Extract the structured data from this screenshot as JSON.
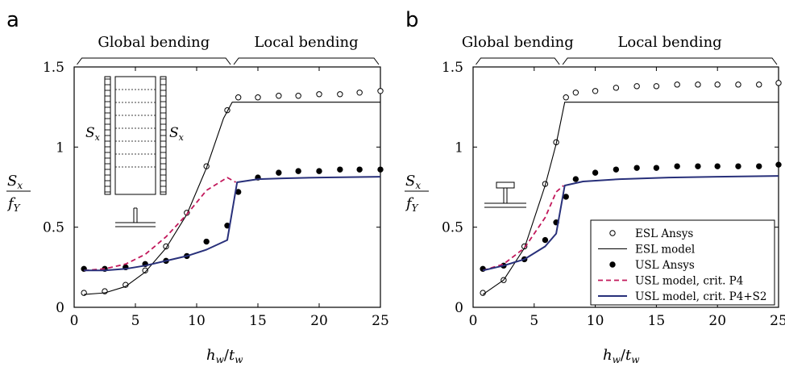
{
  "colors": {
    "esl": "#000000",
    "usl_ansys": "#000000",
    "usl_p4": "#c2185b",
    "usl_p4s2": "#28307a"
  },
  "chart_data": [
    {
      "type": "line",
      "panel_label": "a",
      "xlabel": "h_w/t_w",
      "ylabel": "S_x/f_Y",
      "xlim": [
        0,
        25
      ],
      "ylim": [
        0,
        1.5
      ],
      "xticks": [
        "0",
        "5",
        "10",
        "15",
        "20",
        "25"
      ],
      "yticks": [
        "0",
        "0.5",
        "1",
        "1.5"
      ],
      "regions": [
        {
          "label": "Global bending",
          "from": 0.1,
          "to": 12.9
        },
        {
          "label": "Local bending",
          "from": 12.9,
          "to": 25
        }
      ],
      "inset": {
        "left_label": "S_x",
        "right_label": "S_x",
        "section": "T-stiffener"
      },
      "series": [
        {
          "name": "ESL Ansys",
          "style": "open-circle",
          "x": [
            0.8,
            2.5,
            4.2,
            5.8,
            7.5,
            9.2,
            10.8,
            12.5,
            13.4,
            15.0,
            16.7,
            18.3,
            20.0,
            21.7,
            23.3,
            25.0
          ],
          "y": [
            0.09,
            0.1,
            0.14,
            0.23,
            0.38,
            0.59,
            0.88,
            1.23,
            1.31,
            1.31,
            1.32,
            1.32,
            1.33,
            1.33,
            1.34,
            1.35
          ]
        },
        {
          "name": "ESL model",
          "style": "solid-black",
          "x": [
            0.8,
            2.5,
            4.2,
            5.8,
            7.5,
            9.2,
            10.8,
            12.2,
            12.9,
            25.0
          ],
          "y": [
            0.08,
            0.09,
            0.13,
            0.22,
            0.37,
            0.58,
            0.87,
            1.18,
            1.28,
            1.28
          ]
        },
        {
          "name": "USL Ansys",
          "style": "filled-dot",
          "x": [
            0.8,
            2.5,
            4.2,
            5.8,
            7.5,
            9.2,
            10.8,
            12.5,
            13.4,
            15.0,
            16.7,
            18.3,
            20.0,
            21.7,
            23.3,
            25.0
          ],
          "y": [
            0.24,
            0.24,
            0.25,
            0.27,
            0.29,
            0.32,
            0.41,
            0.51,
            0.72,
            0.81,
            0.84,
            0.85,
            0.85,
            0.86,
            0.86,
            0.86
          ]
        },
        {
          "name": "USL model, crit. P4",
          "style": "dashed-magenta",
          "x": [
            0.8,
            2.5,
            4.2,
            5.8,
            7.5,
            9.2,
            10.8,
            12.5,
            13.2
          ],
          "y": [
            0.23,
            0.24,
            0.27,
            0.33,
            0.44,
            0.58,
            0.73,
            0.81,
            0.78
          ]
        },
        {
          "name": "USL model, crit. P4+S2",
          "style": "solid-navy",
          "x": [
            0.8,
            2.5,
            4.2,
            5.8,
            7.5,
            9.2,
            10.8,
            12.5,
            13.3,
            15.0,
            17.0,
            20.0,
            25.0
          ],
          "y": [
            0.23,
            0.23,
            0.24,
            0.26,
            0.29,
            0.32,
            0.36,
            0.42,
            0.78,
            0.8,
            0.805,
            0.81,
            0.815
          ]
        }
      ]
    },
    {
      "type": "line",
      "panel_label": "b",
      "xlabel": "h_w/t_w",
      "ylabel": "S_x/f_Y",
      "xlim": [
        0,
        25
      ],
      "ylim": [
        0,
        1.5
      ],
      "xticks": [
        "0",
        "5",
        "10",
        "15",
        "20",
        "25"
      ],
      "yticks": [
        "0",
        "0.5",
        "1",
        "1.5"
      ],
      "regions": [
        {
          "label": "Global bending",
          "from": 0.1,
          "to": 7.2
        },
        {
          "label": "Local bending",
          "from": 7.2,
          "to": 25
        }
      ],
      "inset": {
        "section": "T-stiffener"
      },
      "legend": {
        "placement": "bottom-right",
        "entries": [
          "ESL Ansys",
          "ESL model",
          "USL Ansys",
          "USL model, crit. P4",
          "USL model, crit. P4+S2"
        ]
      },
      "series": [
        {
          "name": "ESL Ansys",
          "style": "open-circle",
          "x": [
            0.8,
            2.5,
            4.2,
            5.9,
            6.8,
            7.6,
            8.4,
            10.0,
            11.7,
            13.4,
            15.0,
            16.7,
            18.4,
            20.0,
            21.7,
            23.4,
            25.0
          ],
          "y": [
            0.09,
            0.17,
            0.38,
            0.77,
            1.03,
            1.31,
            1.34,
            1.35,
            1.37,
            1.38,
            1.38,
            1.39,
            1.39,
            1.39,
            1.39,
            1.39,
            1.4
          ]
        },
        {
          "name": "ESL model",
          "style": "solid-black",
          "x": [
            0.8,
            2.5,
            4.2,
            5.9,
            6.8,
            7.5,
            25.0
          ],
          "y": [
            0.08,
            0.17,
            0.37,
            0.76,
            1.02,
            1.28,
            1.28
          ]
        },
        {
          "name": "USL Ansys",
          "style": "filled-dot",
          "x": [
            0.8,
            2.5,
            4.2,
            5.9,
            6.8,
            7.6,
            8.4,
            10.0,
            11.7,
            13.4,
            15.0,
            16.7,
            18.4,
            20.0,
            21.7,
            23.4,
            25.0
          ],
          "y": [
            0.24,
            0.26,
            0.3,
            0.42,
            0.53,
            0.69,
            0.8,
            0.84,
            0.86,
            0.87,
            0.87,
            0.88,
            0.88,
            0.88,
            0.88,
            0.88,
            0.89
          ]
        },
        {
          "name": "USL model, crit. P4",
          "style": "dashed-magenta",
          "x": [
            0.8,
            2.5,
            4.2,
            5.9,
            6.8,
            7.4
          ],
          "y": [
            0.23,
            0.27,
            0.37,
            0.56,
            0.72,
            0.76
          ]
        },
        {
          "name": "USL model, crit. P4+S2",
          "style": "solid-navy",
          "x": [
            0.8,
            2.5,
            4.2,
            5.9,
            6.8,
            7.5,
            9.0,
            12.0,
            16.0,
            20.0,
            25.0
          ],
          "y": [
            0.23,
            0.26,
            0.3,
            0.38,
            0.46,
            0.76,
            0.785,
            0.8,
            0.81,
            0.815,
            0.82
          ]
        }
      ]
    }
  ]
}
